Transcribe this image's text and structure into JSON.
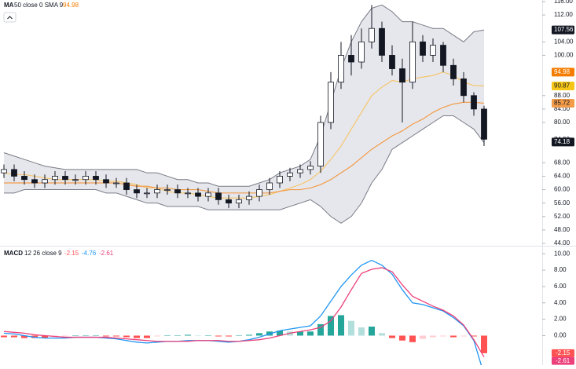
{
  "chart_data": [
    {
      "type": "candlestick",
      "legend": {
        "name": "MA",
        "params": "50 close 0 SMA 9"
      },
      "open": [
        65,
        66,
        64,
        63,
        62,
        63,
        64,
        63,
        63,
        64,
        63,
        62,
        62,
        60,
        59,
        59,
        60,
        60,
        59,
        59,
        58,
        59,
        57,
        56,
        57,
        58,
        60,
        62,
        64,
        65,
        66,
        67,
        80,
        92,
        100,
        98,
        104,
        108,
        100,
        96,
        92,
        104,
        100,
        103,
        97,
        93,
        88,
        84
      ],
      "high": [
        67.5,
        67.5,
        65.5,
        64.5,
        64.5,
        65.5,
        65.5,
        64.5,
        65.5,
        65.5,
        64.5,
        63.5,
        63.5,
        61.5,
        60.5,
        61.5,
        61.5,
        61.5,
        60.5,
        60.5,
        60.5,
        60.5,
        58.5,
        58.5,
        59.5,
        61.5,
        63.5,
        65.5,
        66.5,
        67.5,
        68.5,
        82,
        95,
        104,
        106,
        108,
        115,
        110,
        103,
        99,
        110,
        106,
        105,
        104,
        99,
        95,
        89,
        85
      ],
      "low": [
        63.5,
        62.5,
        61.5,
        60.5,
        60.5,
        61.5,
        61.5,
        61.5,
        61.5,
        61.5,
        60.5,
        60.5,
        58.5,
        57.5,
        57.5,
        57.5,
        58.5,
        57.5,
        57.5,
        56.5,
        56.5,
        55.5,
        54.5,
        54.5,
        55.5,
        56.5,
        58.5,
        60.5,
        62.5,
        63.5,
        64.5,
        65,
        78,
        90,
        94,
        96,
        102,
        98,
        94,
        80,
        90,
        98,
        98,
        95,
        91,
        86,
        82,
        73
      ],
      "close": [
        66,
        64,
        63,
        62,
        63,
        64,
        63,
        63,
        64,
        63,
        62,
        62,
        60,
        59,
        59,
        60,
        60,
        59,
        59,
        58,
        59,
        57,
        56,
        57,
        58,
        60,
        62,
        64,
        65,
        66,
        67,
        80,
        92,
        100,
        98,
        104,
        108,
        100,
        96,
        92,
        104,
        100,
        103,
        97,
        93,
        88,
        84,
        75
      ],
      "up_color": "#ffffff",
      "down_color": "#131722",
      "bands": {
        "color": "#787b86",
        "fill": "#d1d4dc",
        "upper": [
          71,
          70,
          69,
          68,
          67,
          66.5,
          66,
          66,
          66,
          66,
          66,
          66,
          66,
          66,
          65,
          65,
          64,
          63,
          63,
          62,
          62,
          61,
          61,
          61,
          61,
          62,
          63,
          65,
          66,
          67,
          69,
          76,
          86,
          96,
          104,
          110,
          114,
          115,
          113,
          110,
          110,
          109,
          108,
          108,
          106,
          104,
          107,
          107.56
        ],
        "lower": [
          59,
          59,
          60,
          60,
          60,
          60,
          60,
          60,
          60,
          60,
          59,
          59,
          58,
          57,
          56,
          56,
          55,
          55,
          55,
          55,
          54,
          54,
          54,
          54,
          54,
          54,
          54,
          54,
          55,
          56,
          57,
          55,
          52,
          50,
          52,
          56,
          62,
          66,
          72,
          74,
          76,
          78,
          80,
          82,
          82,
          80,
          78,
          74
        ]
      },
      "lines": [
        {
          "color": "#f5c66e",
          "values": [
            65,
            64.5,
            64.5,
            64,
            63.5,
            63,
            63,
            63,
            63,
            63,
            62.5,
            62.5,
            62,
            61.5,
            60.5,
            60.5,
            59.5,
            59,
            59,
            58.5,
            58,
            57.5,
            57.5,
            57.5,
            57.5,
            58,
            58.5,
            59.5,
            60.5,
            61.5,
            63,
            65.5,
            69,
            73,
            78,
            83,
            88,
            90.5,
            92.5,
            92,
            93,
            93.5,
            94,
            95,
            94,
            92,
            91,
            90.87
          ]
        },
        {
          "color": "#f29b48",
          "values": [
            62,
            62,
            62,
            62,
            62,
            62,
            62,
            62,
            62,
            62,
            62,
            62,
            61.5,
            61,
            61,
            60.5,
            60.5,
            60,
            60,
            60,
            59.5,
            59,
            59,
            59,
            59,
            59,
            59,
            59.5,
            60,
            60,
            60.5,
            61.5,
            63,
            65,
            67,
            69.5,
            72,
            74,
            76,
            77.5,
            79.5,
            81,
            83,
            84.5,
            85.5,
            86,
            86,
            85.72
          ]
        }
      ],
      "ylim": [
        44,
        116
      ],
      "yticks": [
        {
          "value": 44,
          "label": "44.00"
        },
        {
          "value": 48,
          "label": "48.00"
        },
        {
          "value": 52,
          "label": "52.00"
        },
        {
          "value": 56,
          "label": "56.00"
        },
        {
          "value": 60,
          "label": "60.00"
        },
        {
          "value": 64,
          "label": "64.00"
        },
        {
          "value": 68,
          "label": "68.00"
        },
        {
          "value": 80,
          "label": "80.00"
        },
        {
          "value": 84,
          "label": "84.00"
        },
        {
          "value": 88,
          "label": "88.00"
        },
        {
          "value": 100,
          "label": "100.00"
        },
        {
          "value": 104,
          "label": "104.00"
        },
        {
          "value": 112,
          "label": "112.00"
        },
        {
          "value": 116,
          "label": "116.00"
        }
      ],
      "price_tags": [
        {
          "value": 107.56,
          "label": "107.56",
          "color": "#131722",
          "text_color": "#ffffff"
        },
        {
          "value": 94.98,
          "label": "94.98",
          "color": "#f57c00",
          "text_color": "#ffffff"
        },
        {
          "value": 90.87,
          "label": "90.87",
          "color": "#f5c518",
          "text_color": "#131722"
        },
        {
          "value": 85.72,
          "label": "85.72",
          "color": "#f29b48",
          "text_color": "#131722"
        },
        {
          "value": 74.93,
          "label": "74.93",
          "color": "#ffffff",
          "text_color": "#131722"
        },
        {
          "value": 74.18,
          "label": "74.18",
          "color": "#131722",
          "text_color": "#ffffff"
        }
      ]
    },
    {
      "type": "macd",
      "legend": {
        "name": "MACD",
        "params": "12 26 close 9"
      },
      "histogram": {
        "values": [
          -0.2,
          -0.2,
          -0.3,
          -0.3,
          -0.3,
          -0.2,
          -0.1,
          0,
          0,
          0,
          -0.1,
          -0.1,
          -0.2,
          -0.3,
          -0.3,
          -0.1,
          0,
          0,
          0.1,
          0,
          0,
          -0.1,
          -0.1,
          0,
          0.1,
          0.3,
          0.5,
          0.6,
          0.5,
          0.5,
          0.5,
          1.4,
          2.4,
          2.5,
          1.8,
          1,
          1.1,
          0.3,
          -0.3,
          -0.6,
          -0.8,
          -0.4,
          -0.2,
          -0.1,
          -0.2,
          -0.1,
          -0.1,
          -2.15
        ],
        "colors": {
          "up_rising": "#26a69a",
          "up_falling": "#b2dfdb",
          "down_falling": "#ff5252",
          "down_rising": "#ffcdd2"
        }
      },
      "series": [
        {
          "color": "#ff5252",
          "values": [
            0.3,
            0.2,
            0,
            -0.2,
            -0.3,
            -0.3,
            -0.3,
            -0.2,
            -0.2,
            -0.2,
            -0.3,
            -0.4,
            -0.6,
            -0.8,
            -0.9,
            -0.8,
            -0.7,
            -0.7,
            -0.6,
            -0.6,
            -0.6,
            -0.7,
            -0.8,
            -0.7,
            -0.5,
            -0.2,
            0.2,
            0.6,
            0.8,
            1,
            1.2,
            2.4,
            4.2,
            6,
            7.4,
            8.6,
            9.2,
            8.6,
            7.5,
            5.6,
            4,
            3.8,
            3.4,
            3,
            2.2,
            1.2,
            -0.6,
            -4.76
          ],
          "line_color": "#2196f3"
        },
        {
          "color": "#ec407a",
          "values": [
            0.5,
            0.4,
            0.3,
            0.1,
            0,
            -0.1,
            -0.2,
            -0.2,
            -0.2,
            -0.2,
            -0.2,
            -0.3,
            -0.4,
            -0.5,
            -0.6,
            -0.7,
            -0.7,
            -0.7,
            -0.7,
            -0.6,
            -0.6,
            -0.6,
            -0.7,
            -0.7,
            -0.6,
            -0.5,
            -0.3,
            0,
            0.3,
            0.5,
            0.7,
            1,
            1.8,
            3.5,
            5.6,
            7.6,
            8.1,
            8.3,
            7.8,
            6.2,
            4.8,
            4.2,
            3.6,
            3.1,
            2.4,
            1.3,
            -0.5,
            -2.61
          ],
          "line_color": "#ec407a"
        }
      ],
      "ylim": [
        -3.6,
        10.5
      ],
      "yticks": [
        {
          "value": 10,
          "label": "10.00"
        },
        {
          "value": 8,
          "label": "8.00"
        },
        {
          "value": 6,
          "label": "6.00"
        },
        {
          "value": 4,
          "label": "4.00"
        },
        {
          "value": 2,
          "label": "2.00"
        },
        {
          "value": 0,
          "label": "0.00"
        }
      ]
    }
  ]
}
